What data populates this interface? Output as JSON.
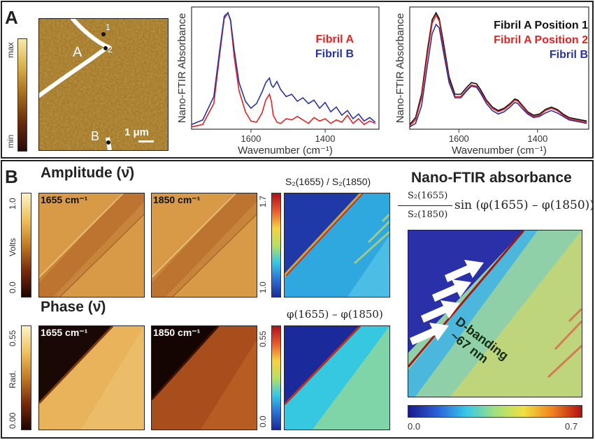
{
  "panel_a": {
    "letter": "A",
    "afm": {
      "colorbar_max": "max",
      "colorbar_min": "min",
      "label_A": "A",
      "label_B": "B",
      "pos1": "1",
      "pos2": "2",
      "scalebar": "1 μm"
    }
  },
  "panel_b": {
    "letter": "B",
    "amplitude_heading": "Amplitude (ν̄)",
    "phase_heading": "Phase (ν̄)",
    "amp_tags": [
      "1655 cm⁻¹",
      "1850 cm⁻¹"
    ],
    "phase_tags": [
      "1655 cm⁻¹",
      "1850 cm⁻¹"
    ],
    "amp_cb": {
      "top": "1.0",
      "bottom": "0.0",
      "unit": "Volts"
    },
    "phase_cb": {
      "top": "0.55",
      "bottom": "0.00",
      "unit": "Rad."
    },
    "ratio_title": "S₂(1655) / S₂(1850)",
    "ratio_cb": {
      "top": "1.7",
      "bottom": "1.0"
    },
    "phase_diff_title": "φ(1655) – φ(1850)",
    "phase_diff_cb": {
      "top": "0.55",
      "bottom": "0.0"
    },
    "nano_heading": "Nano-FTIR absorbance",
    "formula_num": "S₂(1655)",
    "formula_den": "S₂(1850)",
    "formula_rest": "sin (φ(1655) – φ(1850))",
    "d_banding": "D-banding",
    "d_nm": "~67 nm",
    "nano_cb": {
      "min": "0.0",
      "max": "0.7"
    }
  },
  "chart_data": [
    {
      "type": "line",
      "xlabel": "Wavenumber (cm⁻¹)",
      "ylabel": "Nano-FTIR Absorbance",
      "xlim": [
        1760,
        1255
      ],
      "xticks": [
        1600,
        1400
      ],
      "series": [
        {
          "name": "Fibril A",
          "color": "#e02424",
          "x": [
            1760,
            1730,
            1700,
            1685,
            1672,
            1662,
            1655,
            1645,
            1632,
            1615,
            1600,
            1585,
            1570,
            1560,
            1550,
            1545,
            1540,
            1530,
            1520,
            1505,
            1490,
            1475,
            1460,
            1445,
            1430,
            1415,
            1400,
            1385,
            1370,
            1355,
            1340,
            1325,
            1310,
            1295,
            1280,
            1265
          ],
          "y": [
            0.02,
            0.04,
            0.22,
            0.62,
            0.95,
            1.0,
            0.93,
            0.62,
            0.33,
            0.15,
            0.07,
            0.06,
            0.14,
            0.25,
            0.3,
            0.24,
            0.12,
            0.06,
            0.05,
            0.09,
            0.08,
            0.11,
            0.08,
            0.05,
            0.1,
            0.07,
            0.09,
            0.05,
            0.08,
            0.06,
            0.12,
            0.05,
            0.09,
            0.04,
            0.07,
            0.05
          ]
        },
        {
          "name": "Fibril B",
          "color": "#2a34a0",
          "x": [
            1760,
            1730,
            1700,
            1685,
            1672,
            1662,
            1655,
            1645,
            1632,
            1615,
            1600,
            1585,
            1570,
            1560,
            1550,
            1545,
            1540,
            1530,
            1520,
            1505,
            1490,
            1475,
            1460,
            1445,
            1430,
            1415,
            1400,
            1385,
            1370,
            1355,
            1340,
            1325,
            1310,
            1295,
            1280,
            1265
          ],
          "y": [
            0.04,
            0.08,
            0.28,
            0.66,
            0.97,
            1.0,
            0.94,
            0.68,
            0.4,
            0.24,
            0.18,
            0.22,
            0.32,
            0.4,
            0.44,
            0.38,
            0.36,
            0.41,
            0.34,
            0.28,
            0.3,
            0.24,
            0.27,
            0.22,
            0.25,
            0.18,
            0.23,
            0.15,
            0.19,
            0.12,
            0.16,
            0.09,
            0.13,
            0.07,
            0.1,
            0.06
          ]
        }
      ]
    },
    {
      "type": "line",
      "xlabel": "Wavenumber (cm⁻¹)",
      "ylabel": "Nano-FTIR Absorbance",
      "xlim": [
        1725,
        1270
      ],
      "xticks": [
        1600,
        1400
      ],
      "series": [
        {
          "name": "Fibril A Position 1",
          "color": "#111111",
          "x": [
            1725,
            1710,
            1695,
            1680,
            1668,
            1658,
            1650,
            1640,
            1625,
            1610,
            1595,
            1580,
            1568,
            1555,
            1545,
            1530,
            1515,
            1500,
            1485,
            1470,
            1458,
            1450,
            1440,
            1425,
            1410,
            1395,
            1380,
            1365,
            1350,
            1335,
            1320,
            1305,
            1290,
            1275
          ],
          "y": [
            0.04,
            0.1,
            0.3,
            0.68,
            0.94,
            1.0,
            0.95,
            0.76,
            0.45,
            0.3,
            0.3,
            0.36,
            0.4,
            0.39,
            0.34,
            0.25,
            0.19,
            0.16,
            0.18,
            0.22,
            0.26,
            0.25,
            0.21,
            0.15,
            0.12,
            0.13,
            0.17,
            0.19,
            0.17,
            0.13,
            0.1,
            0.09,
            0.08,
            0.07
          ]
        },
        {
          "name": "Fibril A Position 2",
          "color": "#e02424",
          "x": [
            1725,
            1710,
            1695,
            1680,
            1668,
            1658,
            1650,
            1640,
            1625,
            1610,
            1595,
            1580,
            1568,
            1555,
            1545,
            1530,
            1515,
            1500,
            1485,
            1470,
            1458,
            1450,
            1440,
            1425,
            1410,
            1395,
            1380,
            1365,
            1350,
            1335,
            1320,
            1305,
            1290,
            1275
          ],
          "y": [
            0.03,
            0.08,
            0.27,
            0.64,
            0.91,
            0.98,
            0.93,
            0.72,
            0.42,
            0.28,
            0.28,
            0.34,
            0.38,
            0.37,
            0.32,
            0.24,
            0.18,
            0.15,
            0.17,
            0.21,
            0.25,
            0.24,
            0.2,
            0.14,
            0.11,
            0.12,
            0.16,
            0.18,
            0.16,
            0.12,
            0.09,
            0.08,
            0.07,
            0.06
          ]
        },
        {
          "name": "Fibril B",
          "color": "#2a34a0",
          "x": [
            1725,
            1710,
            1695,
            1680,
            1668,
            1658,
            1650,
            1640,
            1625,
            1610,
            1595,
            1580,
            1568,
            1555,
            1545,
            1530,
            1515,
            1500,
            1485,
            1470,
            1458,
            1450,
            1440,
            1425,
            1410,
            1395,
            1380,
            1365,
            1350,
            1335,
            1320,
            1305,
            1290,
            1275
          ],
          "y": [
            0.02,
            0.05,
            0.2,
            0.55,
            0.82,
            0.9,
            0.87,
            0.68,
            0.4,
            0.27,
            0.27,
            0.33,
            0.37,
            0.36,
            0.31,
            0.22,
            0.16,
            0.13,
            0.15,
            0.19,
            0.23,
            0.22,
            0.18,
            0.13,
            0.1,
            0.11,
            0.14,
            0.16,
            0.14,
            0.11,
            0.08,
            0.07,
            0.06,
            0.05
          ]
        }
      ]
    }
  ]
}
